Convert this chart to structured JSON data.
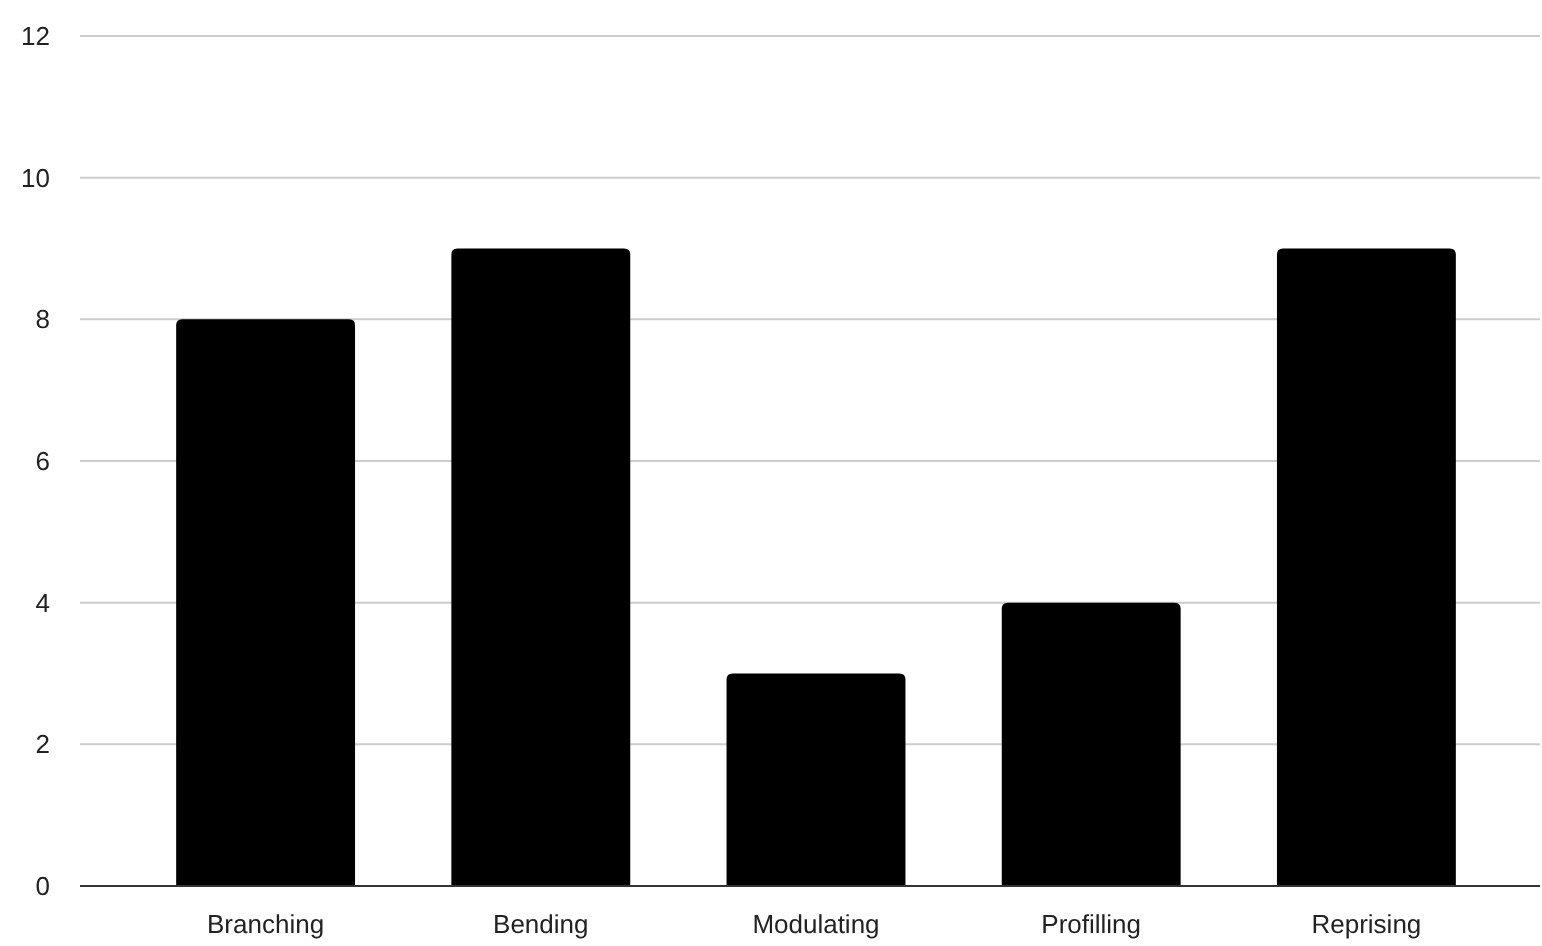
{
  "chart_data": {
    "type": "bar",
    "categories": [
      "Branching",
      "Bending",
      "Modulating",
      "Profilling",
      "Reprising"
    ],
    "values": [
      8,
      9,
      3,
      4,
      9
    ],
    "color": "#000000",
    "ylim": [
      0,
      12
    ],
    "yticks": [
      0,
      2,
      4,
      6,
      8,
      10,
      12
    ],
    "grid": "y"
  }
}
